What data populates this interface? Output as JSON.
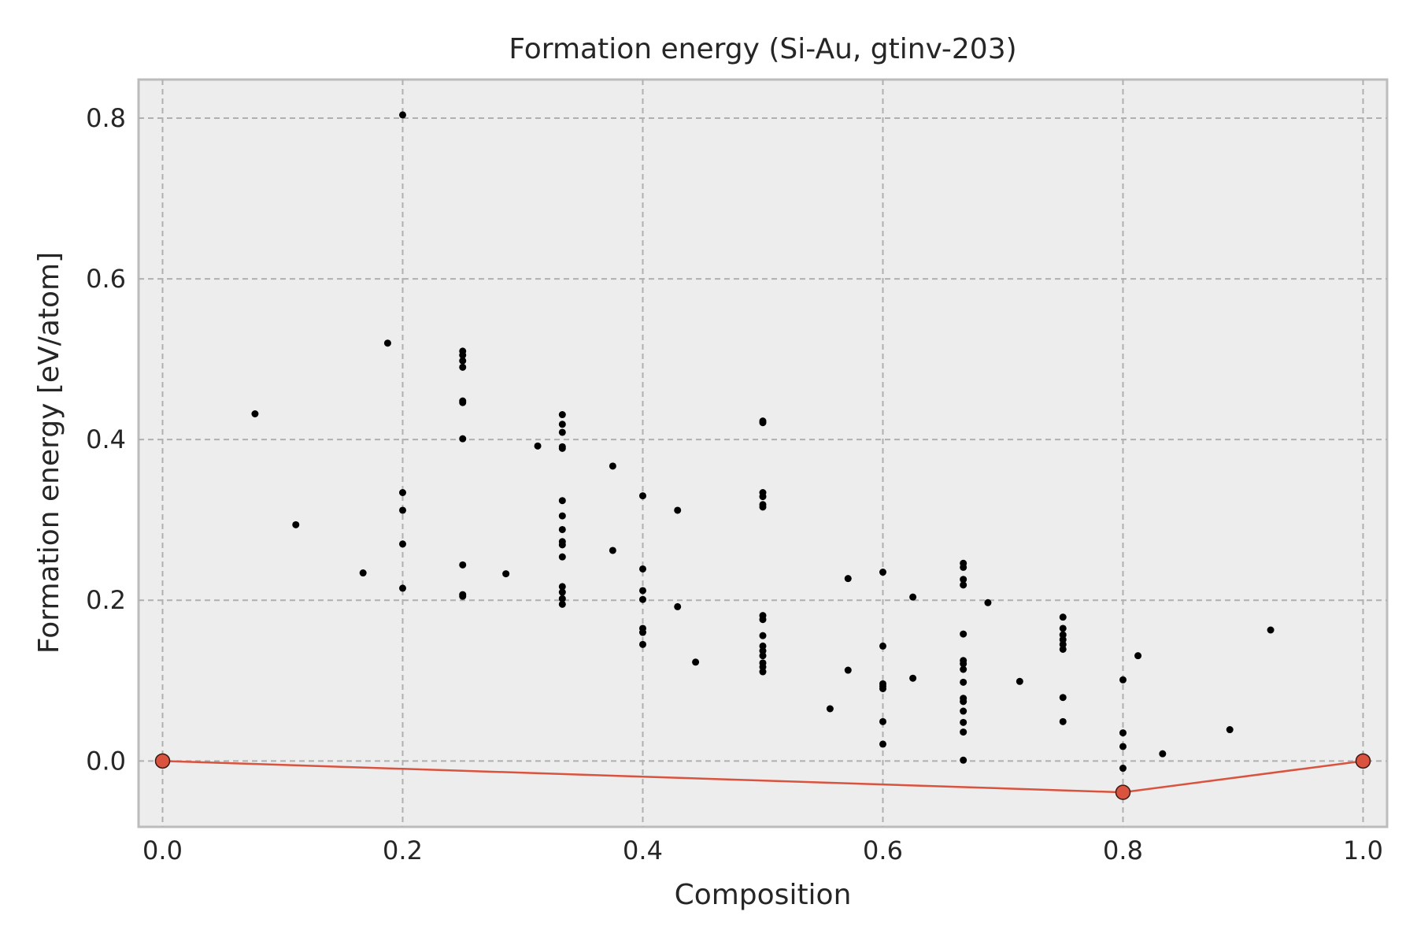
{
  "chart_data": {
    "type": "scatter",
    "title": "Formation energy (Si-Au, gtinv-203)",
    "xlabel": "Composition",
    "ylabel": "Formation energy [eV/atom]",
    "xlim": [
      -0.02,
      1.02
    ],
    "ylim": [
      -0.082,
      0.848
    ],
    "xticks": [
      0.0,
      0.2,
      0.4,
      0.6,
      0.8,
      1.0
    ],
    "xtick_labels": [
      "0.0",
      "0.2",
      "0.4",
      "0.6",
      "0.8",
      "1.0"
    ],
    "yticks": [
      0.0,
      0.2,
      0.4,
      0.6,
      0.8
    ],
    "ytick_labels": [
      "0.0",
      "0.2",
      "0.4",
      "0.6",
      "0.8"
    ],
    "grid": true,
    "colors": {
      "points": "#000000",
      "hull": "#d9533f",
      "hull_marker_edge": "#3a1a14",
      "background": "#ededed"
    },
    "series": [
      {
        "points": [
          [
            0.077,
            0.432
          ],
          [
            0.111,
            0.294
          ],
          [
            0.167,
            0.234
          ],
          [
            0.1875,
            0.52
          ],
          [
            0.2,
            0.804
          ],
          [
            0.2,
            0.334
          ],
          [
            0.2,
            0.312
          ],
          [
            0.2,
            0.27
          ],
          [
            0.2,
            0.215
          ],
          [
            0.25,
            0.51
          ],
          [
            0.25,
            0.505
          ],
          [
            0.25,
            0.498
          ],
          [
            0.25,
            0.49
          ],
          [
            0.25,
            0.448
          ],
          [
            0.25,
            0.446
          ],
          [
            0.25,
            0.401
          ],
          [
            0.25,
            0.244
          ],
          [
            0.25,
            0.207
          ],
          [
            0.25,
            0.205
          ],
          [
            0.286,
            0.233
          ],
          [
            0.3125,
            0.392
          ],
          [
            0.333,
            0.431
          ],
          [
            0.333,
            0.419
          ],
          [
            0.333,
            0.409
          ],
          [
            0.333,
            0.391
          ],
          [
            0.333,
            0.389
          ],
          [
            0.333,
            0.324
          ],
          [
            0.333,
            0.305
          ],
          [
            0.333,
            0.288
          ],
          [
            0.333,
            0.273
          ],
          [
            0.333,
            0.269
          ],
          [
            0.333,
            0.254
          ],
          [
            0.333,
            0.217
          ],
          [
            0.333,
            0.21
          ],
          [
            0.333,
            0.202
          ],
          [
            0.333,
            0.195
          ],
          [
            0.375,
            0.367
          ],
          [
            0.375,
            0.262
          ],
          [
            0.4,
            0.33
          ],
          [
            0.4,
            0.239
          ],
          [
            0.4,
            0.212
          ],
          [
            0.4,
            0.201
          ],
          [
            0.4,
            0.165
          ],
          [
            0.4,
            0.16
          ],
          [
            0.4,
            0.145
          ],
          [
            0.429,
            0.312
          ],
          [
            0.429,
            0.192
          ],
          [
            0.444,
            0.123
          ],
          [
            0.5,
            0.423
          ],
          [
            0.5,
            0.421
          ],
          [
            0.5,
            0.334
          ],
          [
            0.5,
            0.329
          ],
          [
            0.5,
            0.319
          ],
          [
            0.5,
            0.316
          ],
          [
            0.5,
            0.181
          ],
          [
            0.5,
            0.176
          ],
          [
            0.5,
            0.156
          ],
          [
            0.5,
            0.143
          ],
          [
            0.5,
            0.137
          ],
          [
            0.5,
            0.131
          ],
          [
            0.5,
            0.122
          ],
          [
            0.5,
            0.117
          ],
          [
            0.5,
            0.111
          ],
          [
            0.556,
            0.065
          ],
          [
            0.571,
            0.227
          ],
          [
            0.571,
            0.113
          ],
          [
            0.6,
            0.235
          ],
          [
            0.6,
            0.143
          ],
          [
            0.6,
            0.096
          ],
          [
            0.6,
            0.093
          ],
          [
            0.6,
            0.09
          ],
          [
            0.6,
            0.049
          ],
          [
            0.6,
            0.021
          ],
          [
            0.625,
            0.204
          ],
          [
            0.625,
            0.103
          ],
          [
            0.667,
            0.246
          ],
          [
            0.667,
            0.241
          ],
          [
            0.667,
            0.226
          ],
          [
            0.667,
            0.219
          ],
          [
            0.667,
            0.158
          ],
          [
            0.667,
            0.125
          ],
          [
            0.667,
            0.121
          ],
          [
            0.667,
            0.114
          ],
          [
            0.667,
            0.098
          ],
          [
            0.667,
            0.078
          ],
          [
            0.667,
            0.074
          ],
          [
            0.667,
            0.062
          ],
          [
            0.667,
            0.048
          ],
          [
            0.667,
            0.036
          ],
          [
            0.667,
            0.001
          ],
          [
            0.6875,
            0.197
          ],
          [
            0.714,
            0.099
          ],
          [
            0.75,
            0.179
          ],
          [
            0.75,
            0.165
          ],
          [
            0.75,
            0.157
          ],
          [
            0.75,
            0.151
          ],
          [
            0.75,
            0.145
          ],
          [
            0.75,
            0.139
          ],
          [
            0.75,
            0.079
          ],
          [
            0.75,
            0.049
          ],
          [
            0.8,
            0.101
          ],
          [
            0.8,
            0.035
          ],
          [
            0.8,
            0.018
          ],
          [
            0.8,
            -0.009
          ],
          [
            0.8125,
            0.131
          ],
          [
            0.833,
            0.009
          ],
          [
            0.889,
            0.039
          ],
          [
            0.923,
            0.163
          ]
        ]
      },
      {
        "points": [
          [
            0.0,
            0.0
          ],
          [
            0.8,
            -0.039
          ],
          [
            1.0,
            0.0
          ]
        ]
      }
    ]
  }
}
